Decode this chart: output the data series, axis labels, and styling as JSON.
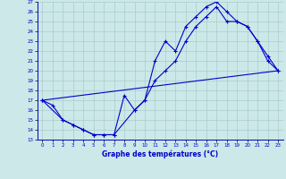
{
  "title": "Graphe des températures (°C)",
  "bg_color": "#cce8e8",
  "grid_color": "#aacccc",
  "line_color": "#0000cc",
  "xlim": [
    -0.5,
    23.5
  ],
  "ylim": [
    13,
    27
  ],
  "xticks": [
    0,
    1,
    2,
    3,
    4,
    5,
    6,
    7,
    8,
    9,
    10,
    11,
    12,
    13,
    14,
    15,
    16,
    17,
    18,
    19,
    20,
    21,
    22,
    23
  ],
  "yticks": [
    13,
    14,
    15,
    16,
    17,
    18,
    19,
    20,
    21,
    22,
    23,
    24,
    25,
    26,
    27
  ],
  "line1": [
    [
      0,
      17
    ],
    [
      1,
      16.5
    ],
    [
      2,
      15
    ],
    [
      3,
      14.5
    ],
    [
      4,
      14
    ],
    [
      5,
      13.5
    ],
    [
      6,
      13.5
    ],
    [
      7,
      13.5
    ],
    [
      8,
      17.5
    ],
    [
      9,
      16
    ],
    [
      10,
      17
    ],
    [
      11,
      21
    ],
    [
      12,
      23
    ],
    [
      13,
      22
    ],
    [
      14,
      24.5
    ],
    [
      15,
      25.5
    ],
    [
      16,
      26.5
    ],
    [
      17,
      27
    ],
    [
      18,
      26
    ],
    [
      19,
      25
    ],
    [
      20,
      24.5
    ],
    [
      21,
      23
    ],
    [
      22,
      21
    ],
    [
      23,
      20
    ]
  ],
  "line2": [
    [
      0,
      17
    ],
    [
      2,
      15
    ],
    [
      3,
      14.5
    ],
    [
      4,
      14
    ],
    [
      5,
      13.5
    ],
    [
      6,
      13.5
    ],
    [
      7,
      13.5
    ],
    [
      9,
      16
    ],
    [
      10,
      17
    ],
    [
      11,
      19
    ],
    [
      12,
      20
    ],
    [
      13,
      21
    ],
    [
      14,
      23
    ],
    [
      15,
      24.5
    ],
    [
      16,
      25.5
    ],
    [
      17,
      26.5
    ],
    [
      18,
      25
    ],
    [
      19,
      25
    ],
    [
      20,
      24.5
    ],
    [
      21,
      23
    ],
    [
      22,
      21.5
    ],
    [
      23,
      20
    ]
  ],
  "line3": [
    [
      0,
      17
    ],
    [
      23,
      20
    ]
  ]
}
